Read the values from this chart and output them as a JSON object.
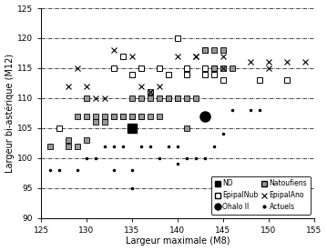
{
  "xlabel": "Largeur maximale (M8)",
  "ylabel": "Largeur bi-astérique (M12)",
  "xlim": [
    125,
    155
  ],
  "ylim": [
    90,
    125
  ],
  "xticks": [
    125,
    130,
    135,
    140,
    145,
    150,
    155
  ],
  "yticks": [
    90,
    95,
    100,
    105,
    110,
    115,
    120,
    125
  ],
  "grid_y": [
    95,
    100,
    105,
    110,
    115,
    120,
    125
  ],
  "ND": [
    [
      135,
      105
    ]
  ],
  "OhaloII": [
    [
      143,
      107
    ]
  ],
  "EpipalNub": [
    [
      127,
      105
    ],
    [
      133,
      115
    ],
    [
      134,
      117
    ],
    [
      135,
      114
    ],
    [
      136,
      115
    ],
    [
      138,
      115
    ],
    [
      139,
      114
    ],
    [
      140,
      120
    ],
    [
      141,
      114
    ],
    [
      141,
      115
    ],
    [
      143,
      114
    ],
    [
      143,
      115
    ],
    [
      144,
      114
    ],
    [
      144,
      115
    ],
    [
      145,
      113
    ],
    [
      149,
      113
    ],
    [
      152,
      113
    ]
  ],
  "Natoufiens": [
    [
      126,
      102
    ],
    [
      128,
      103
    ],
    [
      128,
      102
    ],
    [
      129,
      107
    ],
    [
      129,
      102
    ],
    [
      130,
      110
    ],
    [
      130,
      107
    ],
    [
      130,
      103
    ],
    [
      131,
      107
    ],
    [
      131,
      106
    ],
    [
      132,
      107
    ],
    [
      132,
      106
    ],
    [
      133,
      107
    ],
    [
      133,
      107
    ],
    [
      134,
      107
    ],
    [
      134,
      107
    ],
    [
      135,
      110
    ],
    [
      135,
      107
    ],
    [
      135,
      107
    ],
    [
      136,
      110
    ],
    [
      136,
      107
    ],
    [
      136,
      107
    ],
    [
      137,
      110
    ],
    [
      137,
      111
    ],
    [
      137,
      107
    ],
    [
      138,
      110
    ],
    [
      138,
      107
    ],
    [
      139,
      110
    ],
    [
      139,
      110
    ],
    [
      140,
      110
    ],
    [
      140,
      110
    ],
    [
      141,
      110
    ],
    [
      141,
      105
    ],
    [
      142,
      110
    ],
    [
      143,
      118
    ],
    [
      143,
      118
    ],
    [
      144,
      118
    ],
    [
      144,
      115
    ],
    [
      145,
      118
    ],
    [
      145,
      115
    ],
    [
      146,
      115
    ]
  ],
  "EpipalAno": [
    [
      128,
      112
    ],
    [
      129,
      115
    ],
    [
      130,
      112
    ],
    [
      131,
      110
    ],
    [
      132,
      110
    ],
    [
      133,
      118
    ],
    [
      135,
      117
    ],
    [
      136,
      112
    ],
    [
      137,
      111
    ],
    [
      138,
      112
    ],
    [
      140,
      117
    ],
    [
      142,
      117
    ],
    [
      142,
      117
    ],
    [
      145,
      117
    ],
    [
      145,
      115
    ],
    [
      148,
      116
    ],
    [
      150,
      116
    ],
    [
      150,
      115
    ],
    [
      152,
      116
    ],
    [
      154,
      116
    ]
  ],
  "Actuels": [
    [
      126,
      98
    ],
    [
      127,
      98
    ],
    [
      128,
      102
    ],
    [
      129,
      98
    ],
    [
      130,
      100
    ],
    [
      131,
      100
    ],
    [
      132,
      102
    ],
    [
      133,
      98
    ],
    [
      133,
      102
    ],
    [
      134,
      102
    ],
    [
      135,
      98
    ],
    [
      135,
      95
    ],
    [
      136,
      102
    ],
    [
      137,
      102
    ],
    [
      138,
      100
    ],
    [
      139,
      102
    ],
    [
      140,
      102
    ],
    [
      140,
      99
    ],
    [
      141,
      100
    ],
    [
      142,
      100
    ],
    [
      143,
      100
    ],
    [
      144,
      102
    ],
    [
      145,
      104
    ],
    [
      146,
      108
    ],
    [
      148,
      108
    ],
    [
      149,
      108
    ]
  ]
}
